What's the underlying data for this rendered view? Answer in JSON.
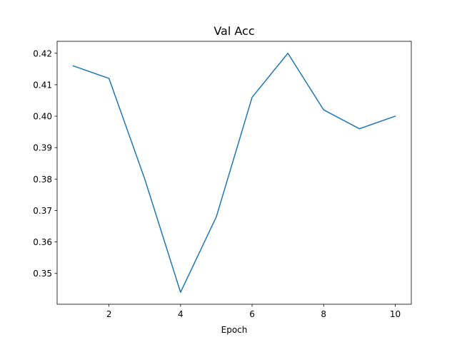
{
  "chart_data": {
    "type": "line",
    "title": "Val Acc",
    "xlabel": "Epoch",
    "ylabel": "",
    "x": [
      1,
      2,
      3,
      4,
      5,
      6,
      7,
      8,
      9,
      10
    ],
    "series": [
      {
        "values": [
          0.416,
          0.412,
          0.38,
          0.344,
          0.368,
          0.406,
          0.42,
          0.402,
          0.396,
          0.4
        ],
        "color": "#1f77b4"
      }
    ],
    "xlim": [
      0.55,
      10.45
    ],
    "ylim": [
      0.3402,
      0.4238
    ],
    "xticks": [
      2,
      4,
      6,
      8,
      10
    ],
    "xtick_labels": [
      "2",
      "4",
      "6",
      "8",
      "10"
    ],
    "yticks": [
      0.35,
      0.36,
      0.37,
      0.38,
      0.39,
      0.4,
      0.41,
      0.42
    ],
    "ytick_labels": [
      "0.35",
      "0.36",
      "0.37",
      "0.38",
      "0.39",
      "0.40",
      "0.41",
      "0.42"
    ],
    "grid": false,
    "legend": "none"
  }
}
